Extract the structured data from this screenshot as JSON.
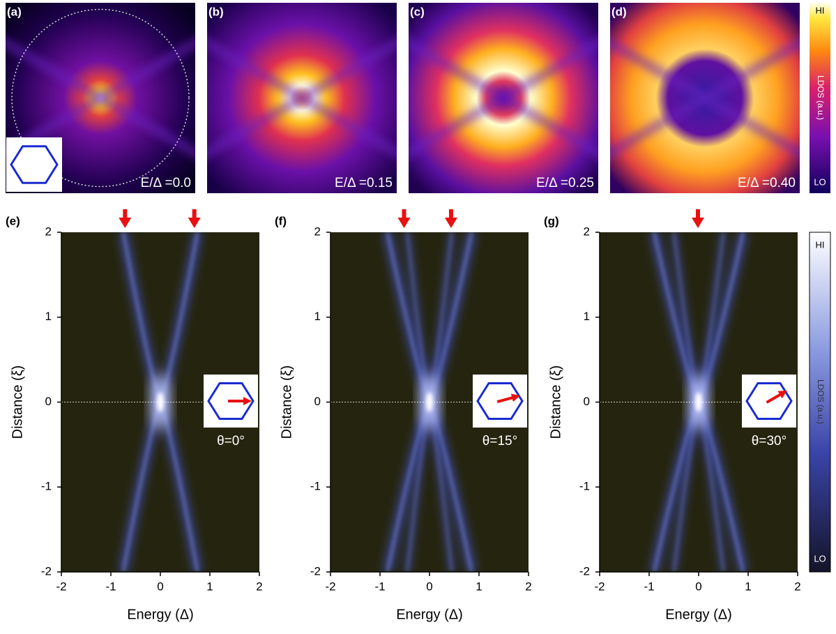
{
  "colorbar_top": {
    "high": "HI",
    "low": "LO",
    "label": "LDOS (a.u.)"
  },
  "colorbar_bottom": {
    "high": "HI",
    "low": "LO",
    "label": "LDOS (a.u.)"
  },
  "chart_data": [
    {
      "type": "map",
      "panel": "(a)",
      "annotation": "E/Δ =0.0"
    },
    {
      "type": "map",
      "panel": "(b)",
      "annotation": "E/Δ =0.15"
    },
    {
      "type": "map",
      "panel": "(c)",
      "annotation": "E/Δ =0.25"
    },
    {
      "type": "map",
      "panel": "(d)",
      "annotation": "E/Δ =0.40"
    },
    {
      "type": "heatmap",
      "panel": "(e)",
      "xlabel": "Energy (Δ)",
      "ylabel": "Distance (ξ)",
      "xlim": [
        -2,
        2
      ],
      "ylim": [
        -2,
        2
      ],
      "xticks": [
        -2,
        -1,
        0,
        1,
        2
      ],
      "yticks": [
        -2,
        -1,
        0,
        1,
        2
      ],
      "arrows": [
        -0.7,
        0.7
      ],
      "annotation": "θ=0°"
    },
    {
      "type": "heatmap",
      "panel": "(f)",
      "xlabel": "Energy (Δ)",
      "ylabel": "Distance (ξ)",
      "xlim": [
        -2,
        2
      ],
      "ylim": [
        -2,
        2
      ],
      "xticks": [
        -2,
        -1,
        0,
        1,
        2
      ],
      "yticks": [
        -2,
        -1,
        0,
        1,
        2
      ],
      "arrows": [
        -0.5,
        0.45
      ],
      "annotation": "θ=15°"
    },
    {
      "type": "heatmap",
      "panel": "(g)",
      "xlabel": "Energy (Δ)",
      "ylabel": "Distance (ξ)",
      "xlim": [
        -2,
        2
      ],
      "ylim": [
        -2,
        2
      ],
      "xticks": [
        -2,
        -1,
        0,
        1,
        2
      ],
      "yticks": [
        -2,
        -1,
        0,
        1,
        2
      ],
      "arrows": [
        0
      ],
      "annotation": "θ=30°"
    }
  ]
}
